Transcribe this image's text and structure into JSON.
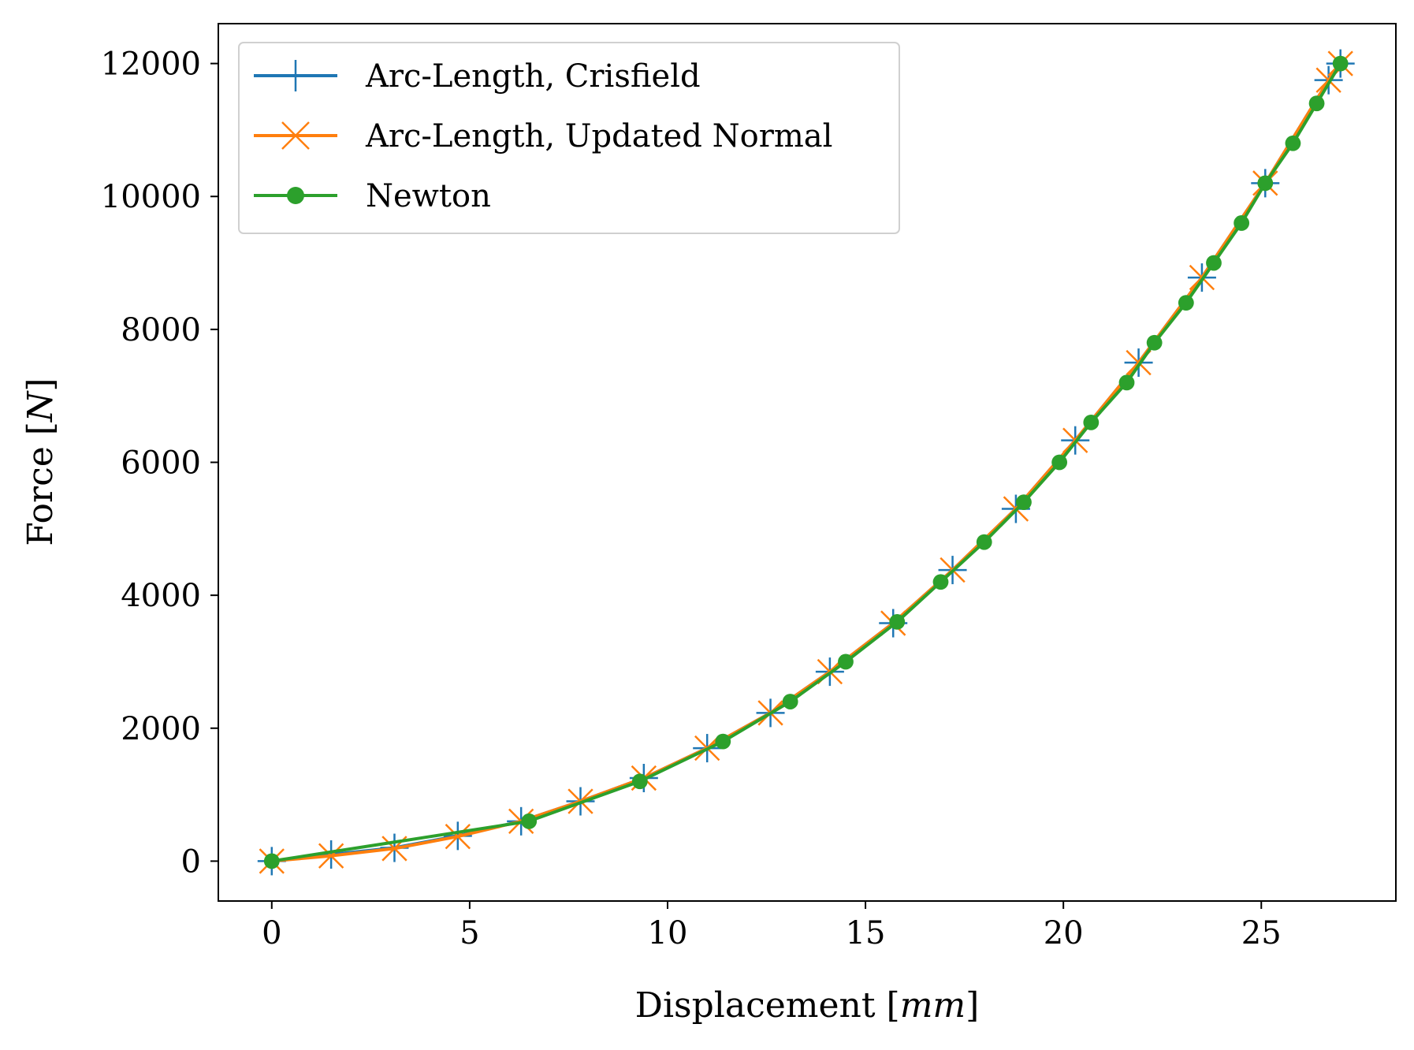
{
  "chart_data": {
    "type": "line",
    "xlabel_prefix": "Displacement [",
    "xlabel_unit": "mm",
    "xlabel_suffix": "]",
    "ylabel_prefix": "Force [",
    "ylabel_unit": "N",
    "ylabel_suffix": "]",
    "xlim": [
      -1.35,
      28.4
    ],
    "ylim": [
      -600,
      12600
    ],
    "xticks": [
      0,
      5,
      10,
      15,
      20,
      25
    ],
    "xtick_labels": [
      "0",
      "5",
      "10",
      "15",
      "20",
      "25"
    ],
    "yticks": [
      0,
      2000,
      4000,
      6000,
      8000,
      10000,
      12000
    ],
    "ytick_labels": [
      "0",
      "2000",
      "4000",
      "6000",
      "8000",
      "10000",
      "12000"
    ],
    "grid": false,
    "legend_position": "upper-left",
    "series": [
      {
        "name": "Arc-Length, Crisfield",
        "color": "#1f77b4",
        "marker": "plus",
        "x": [
          0,
          1.5,
          3.1,
          4.7,
          6.3,
          7.8,
          9.4,
          11.0,
          12.6,
          14.1,
          15.7,
          17.2,
          18.8,
          20.3,
          21.9,
          23.5,
          25.1,
          26.7,
          27.0
        ],
        "y": [
          0,
          100,
          200,
          380,
          600,
          900,
          1250,
          1700,
          2230,
          2850,
          3580,
          4380,
          5300,
          6330,
          7500,
          8780,
          10200,
          11750,
          12000
        ]
      },
      {
        "name": "Arc-Length, Updated Normal",
        "color": "#ff7f0e",
        "marker": "x",
        "x": [
          0,
          1.5,
          3.1,
          4.7,
          6.3,
          7.8,
          9.4,
          11.0,
          12.6,
          14.1,
          15.7,
          17.2,
          18.8,
          20.3,
          21.9,
          23.5,
          25.1,
          26.7,
          27.0
        ],
        "y": [
          0,
          80,
          190,
          370,
          600,
          900,
          1250,
          1700,
          2230,
          2850,
          3580,
          4380,
          5300,
          6330,
          7500,
          8780,
          10200,
          11750,
          12000
        ]
      },
      {
        "name": "Newton",
        "color": "#2ca02c",
        "marker": "dot",
        "x": [
          0,
          6.5,
          9.3,
          11.4,
          13.1,
          14.5,
          15.8,
          16.9,
          18.0,
          19.0,
          19.9,
          20.7,
          21.6,
          22.3,
          23.1,
          23.8,
          24.5,
          25.1,
          25.8,
          26.4,
          27.0
        ],
        "y": [
          0,
          600,
          1200,
          1800,
          2400,
          3000,
          3600,
          4200,
          4800,
          5400,
          6000,
          6600,
          7200,
          7800,
          8400,
          9000,
          9600,
          10200,
          10800,
          11400,
          12000
        ]
      }
    ]
  }
}
